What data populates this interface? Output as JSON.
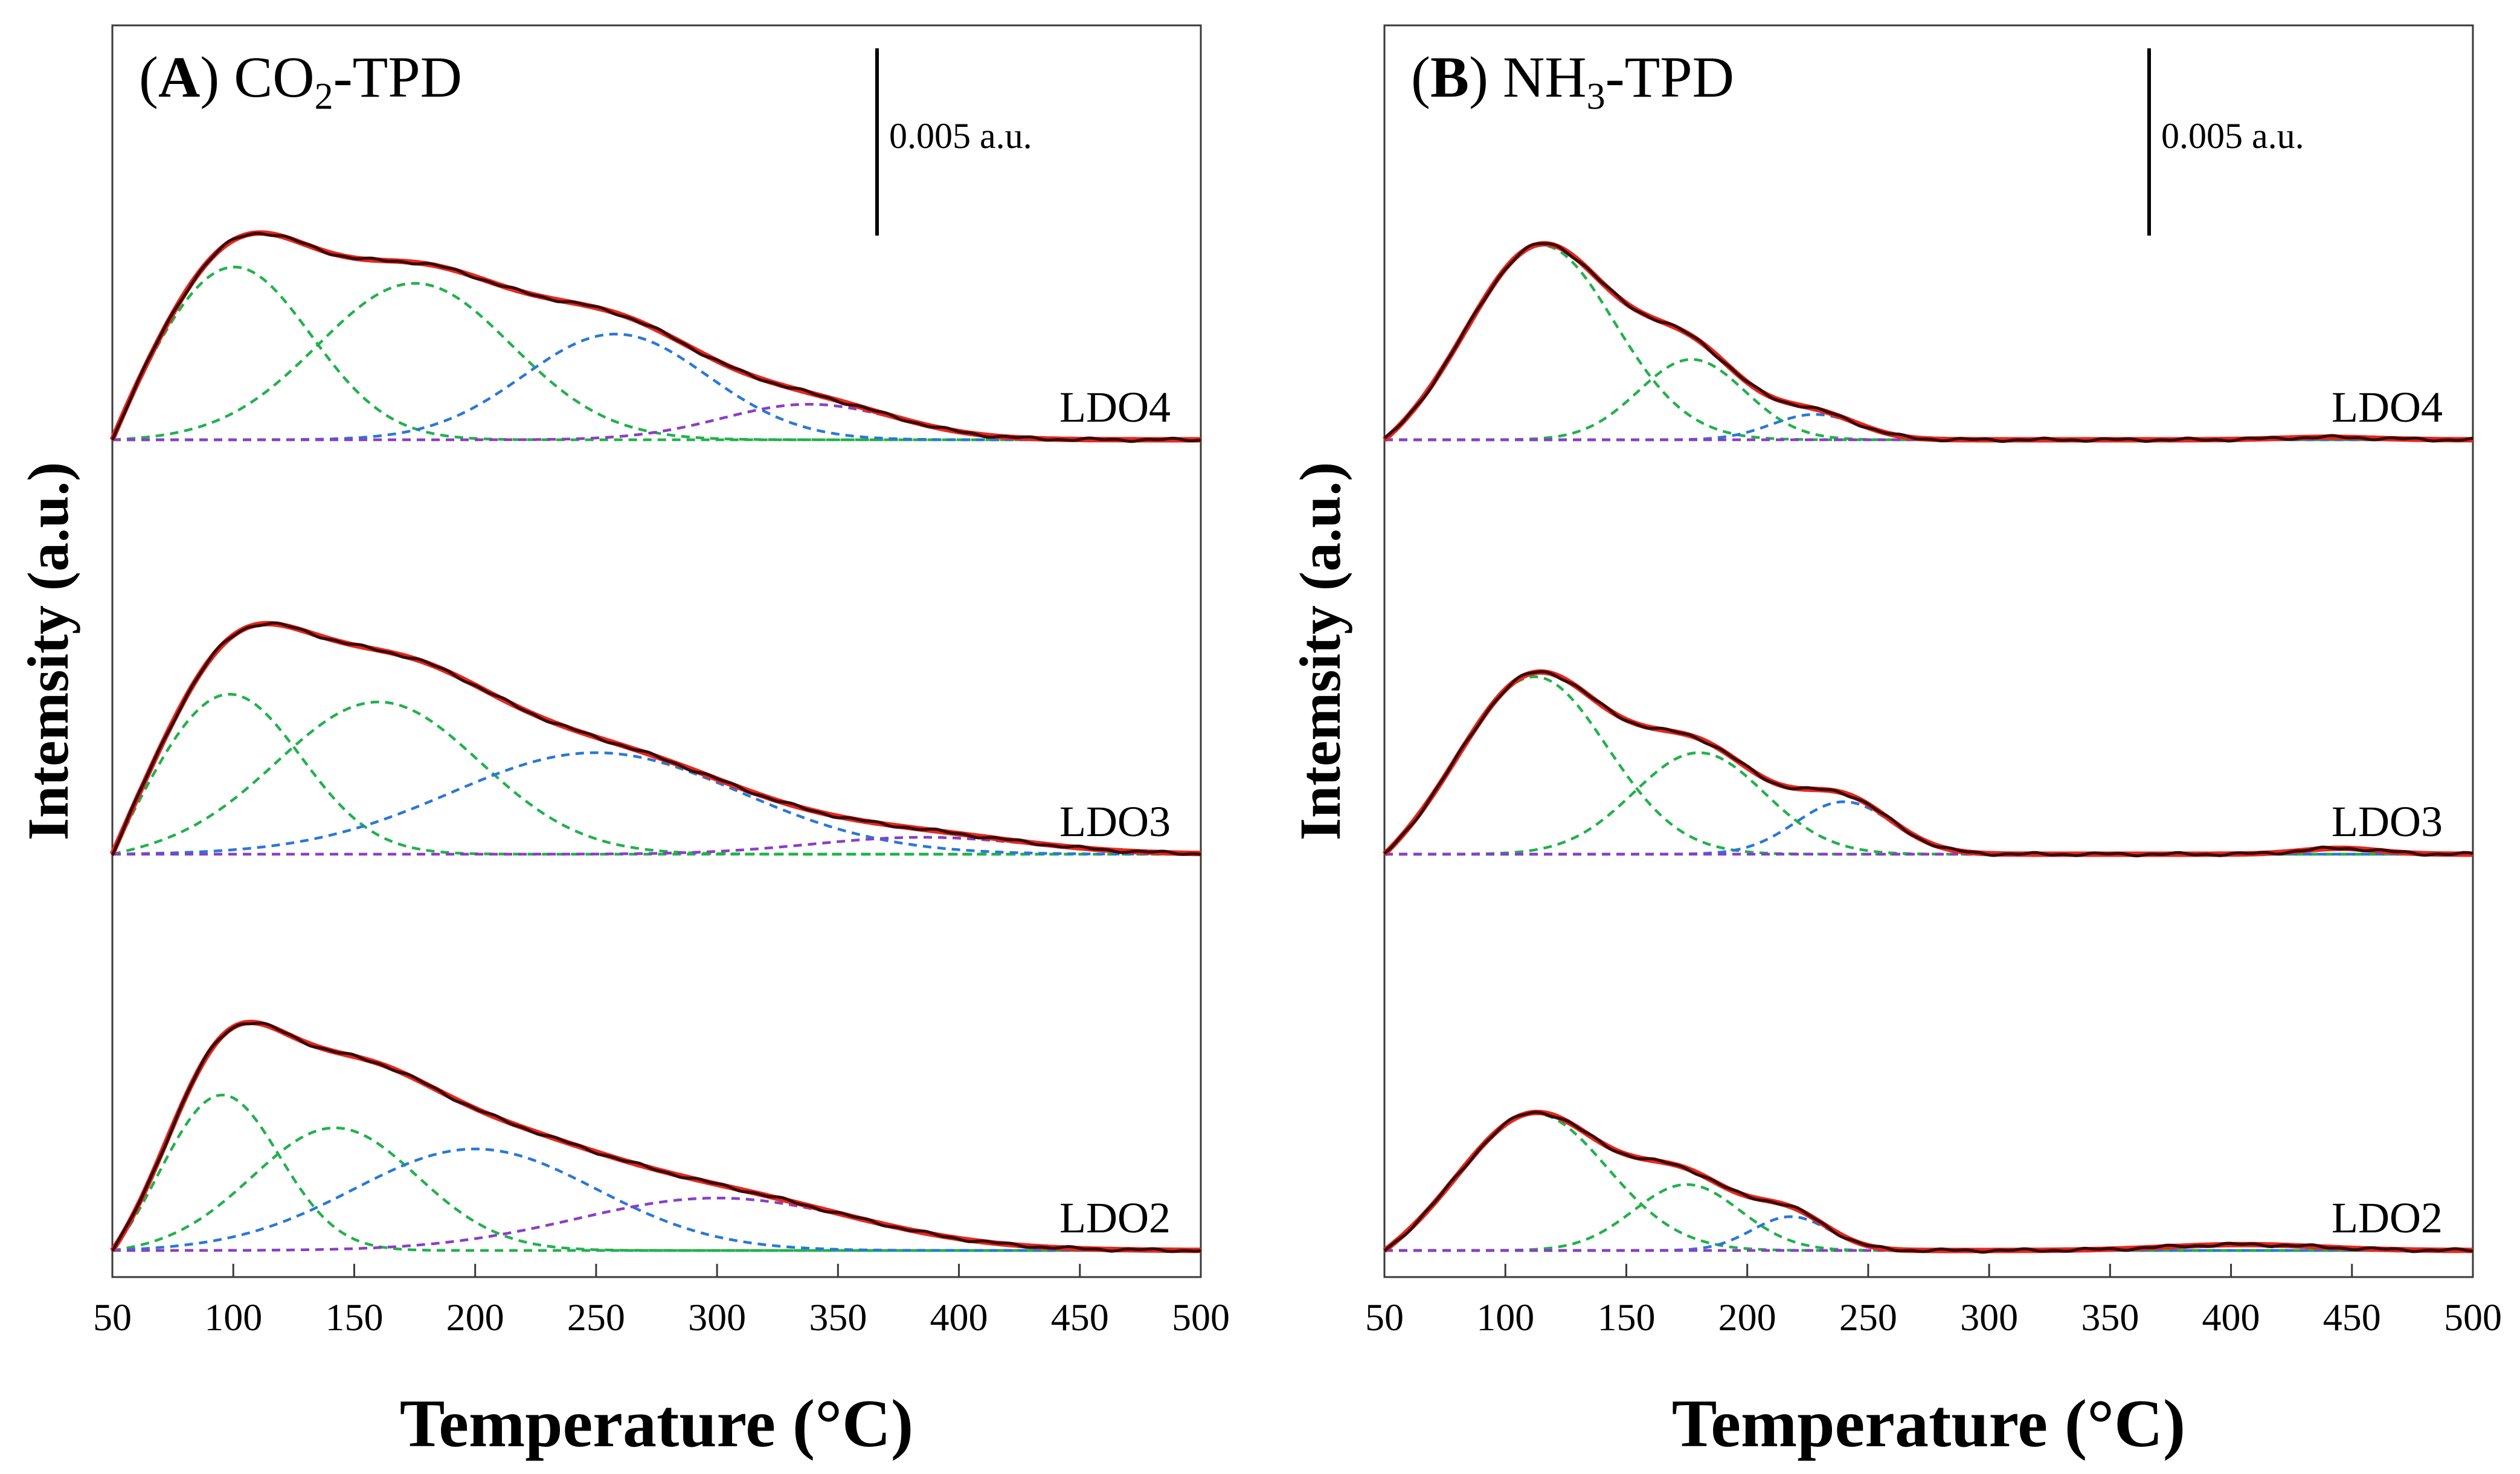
{
  "chart_data": [
    {
      "type": "line",
      "panel_letter": "A",
      "title_prefix": "CO",
      "title_sub": "2",
      "title_suffix": "-TPD",
      "xlabel": "Temperature (°C)",
      "ylabel": "Intemsity (a.u.)",
      "xlim": [
        50,
        500
      ],
      "xticks": [
        50,
        100,
        150,
        200,
        250,
        300,
        350,
        400,
        450,
        500
      ],
      "scale_bar_label": "0.005 a.u.",
      "colors": {
        "fit": "#e8281e",
        "experimental": "#3a0a0a",
        "comp_low": "#22b14c",
        "comp_mid": "#2a78d6",
        "comp_high": "#8a3fc4"
      },
      "samples": [
        {
          "name": "LDO4",
          "components": [
            {
              "center": 100,
              "height": 2.05,
              "width": 32,
              "color": "comp_low"
            },
            {
              "center": 175,
              "height": 1.85,
              "width": 40,
              "color": "comp_low"
            },
            {
              "center": 258,
              "height": 1.25,
              "width": 38,
              "color": "comp_mid"
            },
            {
              "center": 338,
              "height": 0.42,
              "width": 36,
              "color": "comp_high"
            }
          ]
        },
        {
          "name": "LDO3",
          "components": [
            {
              "center": 98,
              "height": 1.9,
              "width": 30,
              "color": "comp_low"
            },
            {
              "center": 160,
              "height": 1.8,
              "width": 42,
              "color": "comp_low"
            },
            {
              "center": 250,
              "height": 1.2,
              "width": 60,
              "color": "comp_mid"
            },
            {
              "center": 385,
              "height": 0.2,
              "width": 45,
              "color": "comp_high"
            }
          ]
        },
        {
          "name": "LDO2",
          "components": [
            {
              "center": 95,
              "height": 1.85,
              "width": 24,
              "color": "comp_low"
            },
            {
              "center": 142,
              "height": 1.45,
              "width": 34,
              "color": "comp_low"
            },
            {
              "center": 200,
              "height": 1.2,
              "width": 50,
              "color": "comp_mid"
            },
            {
              "center": 300,
              "height": 0.62,
              "width": 58,
              "color": "comp_high"
            }
          ]
        }
      ]
    },
    {
      "type": "line",
      "panel_letter": "B",
      "title_prefix": "NH",
      "title_sub": "3",
      "title_suffix": "-TPD",
      "xlabel": "Temperature (°C)",
      "ylabel": "Intemsity (a.u.)",
      "xlim": [
        50,
        500
      ],
      "xticks": [
        50,
        100,
        150,
        200,
        250,
        300,
        350,
        400,
        450,
        500
      ],
      "scale_bar_label": "0.005 a.u.",
      "colors": {
        "fit": "#e8281e",
        "experimental": "#3a0a0a",
        "comp_low": "#22b14c",
        "comp_mid": "#2a78d6",
        "comp_high": "#8a3fc4"
      },
      "samples": [
        {
          "name": "LDO4",
          "components": [
            {
              "center": 115,
              "height": 2.3,
              "width": 30,
              "color": "comp_low"
            },
            {
              "center": 177,
              "height": 0.95,
              "width": 22,
              "color": "comp_low"
            },
            {
              "center": 228,
              "height": 0.3,
              "width": 18,
              "color": "comp_mid"
            },
            {
              "center": 440,
              "height": 0.03,
              "width": 20,
              "color": "comp_high"
            }
          ]
        },
        {
          "name": "LDO3",
          "components": [
            {
              "center": 112,
              "height": 2.1,
              "width": 30,
              "color": "comp_low"
            },
            {
              "center": 180,
              "height": 1.2,
              "width": 27,
              "color": "comp_low"
            },
            {
              "center": 240,
              "height": 0.62,
              "width": 20,
              "color": "comp_mid"
            },
            {
              "center": 445,
              "height": 0.07,
              "width": 16,
              "color": "comp_high"
            }
          ]
        },
        {
          "name": "LDO2",
          "components": [
            {
              "center": 112,
              "height": 1.62,
              "width": 30,
              "color": "comp_low"
            },
            {
              "center": 175,
              "height": 0.78,
              "width": 22,
              "color": "comp_low"
            },
            {
              "center": 218,
              "height": 0.4,
              "width": 16,
              "color": "comp_mid"
            },
            {
              "center": 405,
              "height": 0.07,
              "width": 32,
              "color": "comp_high"
            }
          ]
        }
      ]
    }
  ]
}
